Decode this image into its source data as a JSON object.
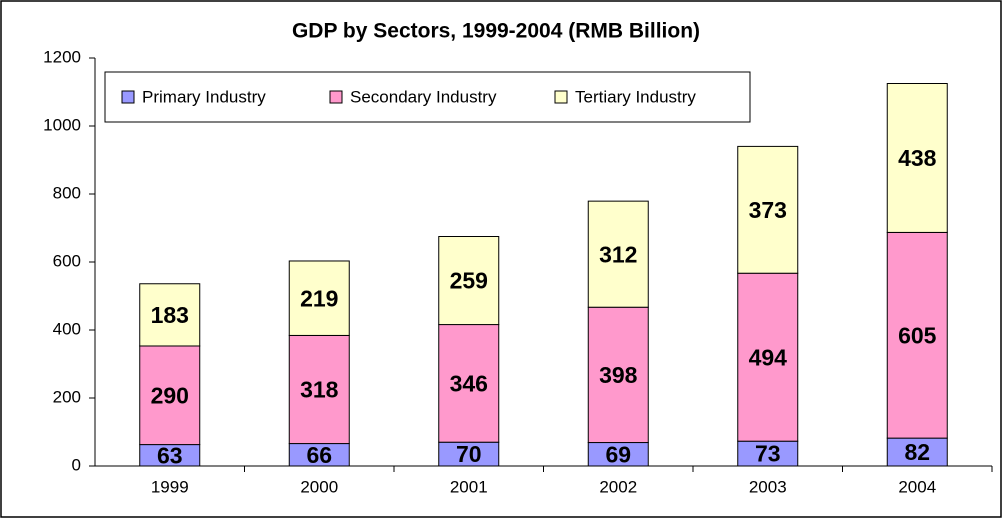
{
  "chart_data": {
    "type": "stacked_bar",
    "title": "GDP by Sectors, 1999-2004 (RMB Billion)",
    "categories": [
      "1999",
      "2000",
      "2001",
      "2002",
      "2003",
      "2004"
    ],
    "series": [
      {
        "name": "Primary Industry",
        "color": "#9999ff",
        "values": [
          63,
          66,
          70,
          69,
          73,
          82
        ]
      },
      {
        "name": "Secondary Industry",
        "color": "#ff99cc",
        "values": [
          290,
          318,
          346,
          398,
          494,
          605
        ]
      },
      {
        "name": "Tertiary Industry",
        "color": "#ffffcc",
        "values": [
          183,
          219,
          259,
          312,
          373,
          438
        ]
      }
    ],
    "ylim": [
      0,
      1200
    ],
    "yticks": [
      0,
      200,
      400,
      600,
      800,
      1000,
      1200
    ],
    "grid": false,
    "legend": "top-left"
  }
}
